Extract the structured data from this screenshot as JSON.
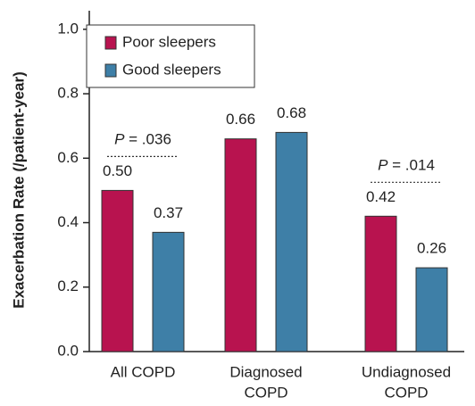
{
  "chart_data": {
    "type": "bar",
    "y_label": "Exacerbation Rate (/patient-year)",
    "categories": [
      [
        "All COPD"
      ],
      [
        "Diagnosed",
        "COPD"
      ],
      [
        "Undiagnosed",
        "COPD"
      ]
    ],
    "series": [
      {
        "name": "Poor sleepers",
        "color": "#b8134f",
        "values": [
          0.5,
          0.66,
          0.42
        ],
        "value_labels": [
          "0.50",
          "0.66",
          "0.42"
        ]
      },
      {
        "name": "Good sleepers",
        "color": "#3e7fa7",
        "values": [
          0.37,
          0.68,
          0.26
        ],
        "value_labels": [
          "0.37",
          "0.68",
          "0.26"
        ]
      }
    ],
    "ylim": [
      0,
      1.05
    ],
    "yticks": [
      {
        "value": 0,
        "label": "0.0"
      },
      {
        "value": 0.2,
        "label": "0.2"
      },
      {
        "value": 0.4,
        "label": "0.4"
      },
      {
        "value": 0.6,
        "label": "0.6"
      },
      {
        "value": 0.8,
        "label": "0.8"
      },
      {
        "value": 1,
        "label": "1.0"
      }
    ],
    "legend": "top-left",
    "annotations": [
      {
        "label": [
          "P",
          " = .036"
        ]
      },
      {
        "label": [
          "P",
          " = .014"
        ]
      }
    ]
  }
}
